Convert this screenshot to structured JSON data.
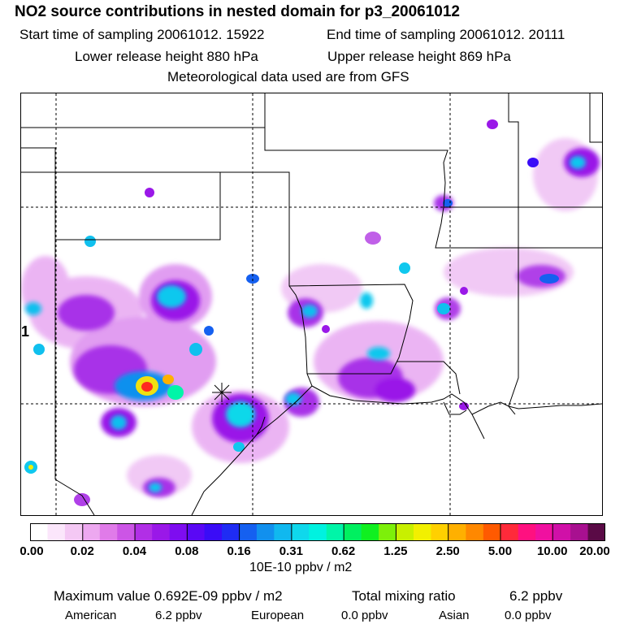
{
  "header": {
    "title": "NO2 source contributions in nested domain for p3_20061012",
    "start_label": "Start time of sampling 20061012. 15922",
    "end_label": "End time of sampling 20061012. 20111",
    "lower_label": "Lower release height  880 hPa",
    "upper_label": "Upper release height  869 hPa",
    "met_label": "Meteorological data used are from GFS"
  },
  "map": {
    "side_marker": "1",
    "release_marker": "release-point-star"
  },
  "colorbar": {
    "colors": [
      "#ffffff",
      "#fbe6fb",
      "#f4c8f4",
      "#eda8f0",
      "#e07be9",
      "#cc55e6",
      "#b12fe6",
      "#9a18e8",
      "#7e0df0",
      "#5a08f5",
      "#3a0cf7",
      "#1f2cf4",
      "#1560f0",
      "#1190ee",
      "#10b8ef",
      "#0fd8ec",
      "#00f2e0",
      "#00f5a8",
      "#00f060",
      "#10f020",
      "#7df00a",
      "#c8f000",
      "#f2f000",
      "#ffd000",
      "#ffb000",
      "#ff8800",
      "#ff5a00",
      "#ff2a3a",
      "#ff1080",
      "#f010a0",
      "#d010a8",
      "#a81090",
      "#5a0a46"
    ],
    "tick_labels": [
      "0.00",
      "0.02",
      "0.04",
      "0.08",
      "0.16",
      "0.31",
      "0.62",
      "1.25",
      "2.50",
      "5.00",
      "10.00",
      "20.00"
    ],
    "units": "10E-10 ppbv / m2"
  },
  "footer": {
    "max_label": "Maximum value  0.692E-09 ppbv / m2",
    "total_label": "Total mixing ratio",
    "total_value": "6.2 ppbv",
    "regions": [
      {
        "name": "American",
        "value": "6.2 ppbv"
      },
      {
        "name": "European",
        "value": "0.0 ppbv"
      },
      {
        "name": "Asian",
        "value": "0.0 ppbv"
      }
    ]
  }
}
